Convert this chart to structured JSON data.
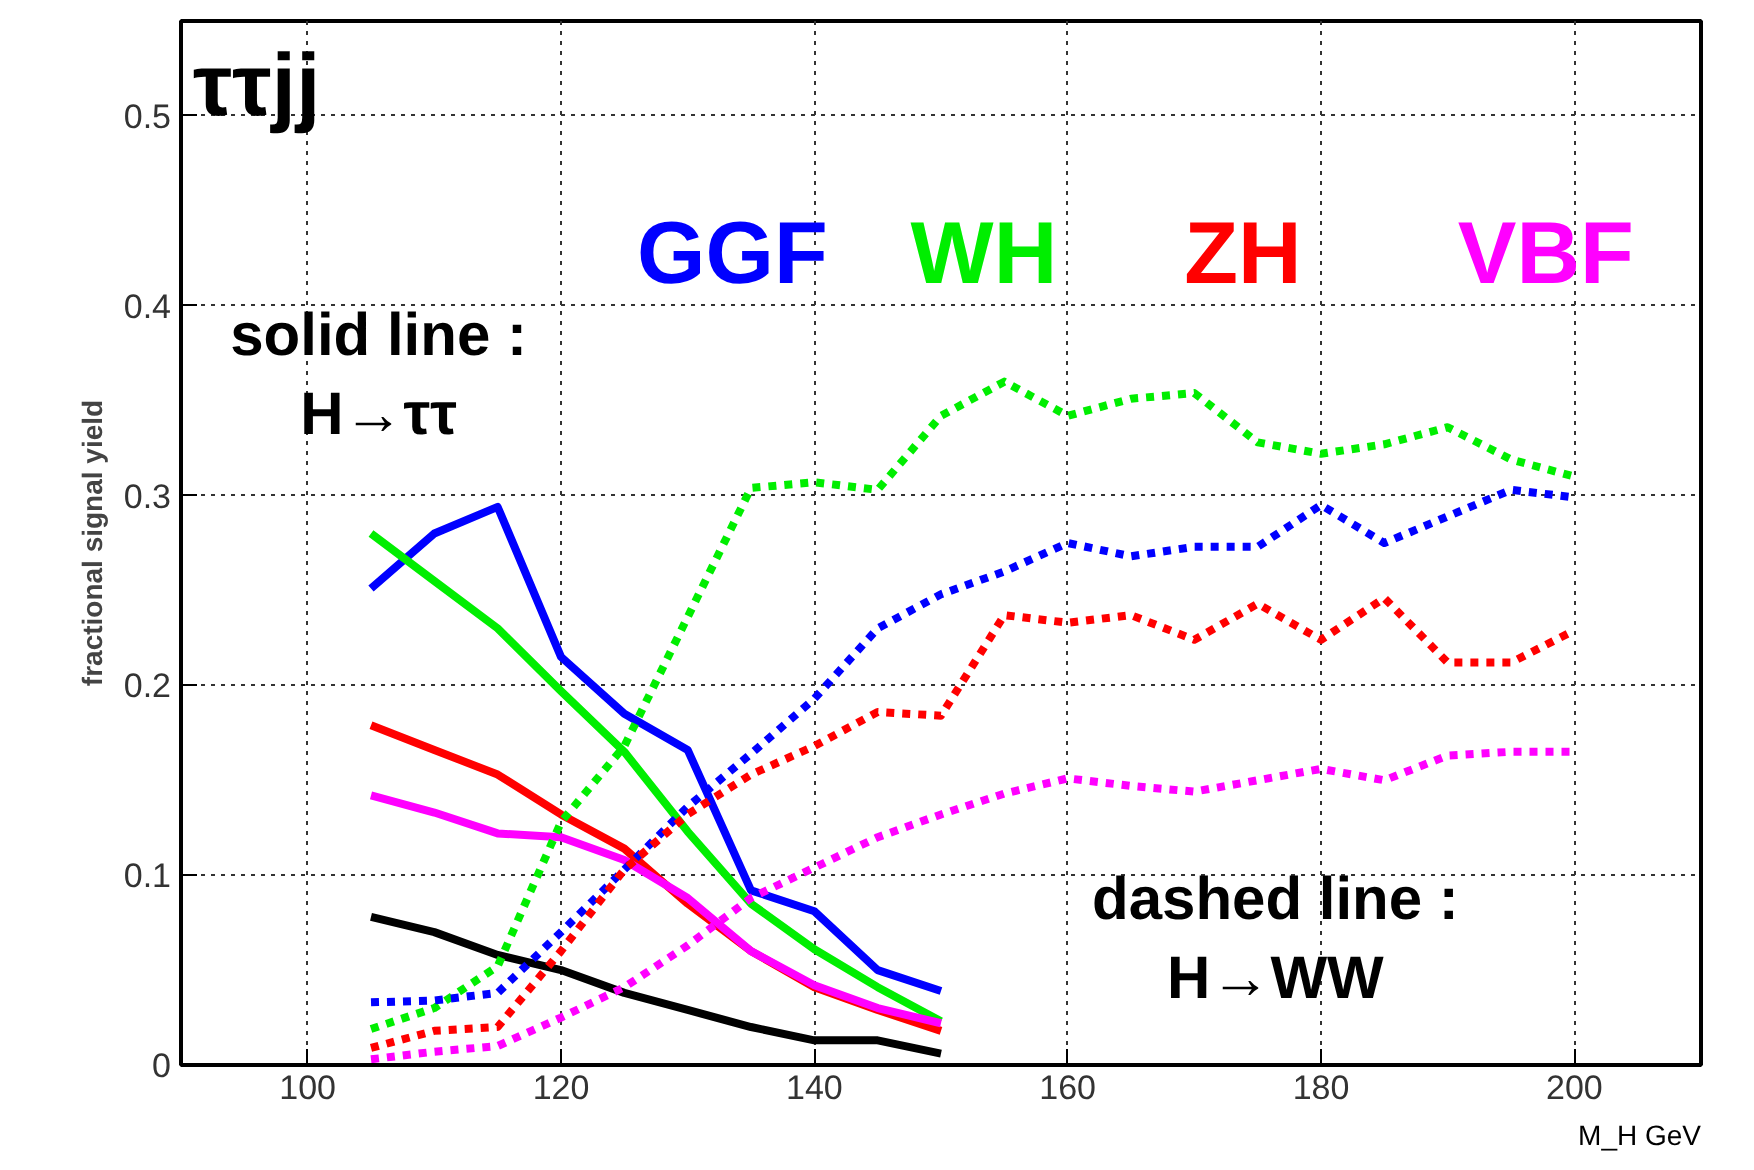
{
  "chart_data": {
    "type": "line",
    "title": "ττjj",
    "xlabel": "M_H GeV",
    "ylabel": "fractional signal yield",
    "annotations": [
      "solid line :\nH→ττ",
      "dashed line :\nH→WW"
    ],
    "xlim": [
      90,
      210
    ],
    "ylim": [
      0,
      0.55
    ],
    "xticks": [
      100,
      120,
      140,
      160,
      180,
      200
    ],
    "yticks": [
      0,
      {
        "value": 0.1,
        "label": "0.1"
      },
      {
        "value": 0.2,
        "label": "0.2"
      },
      {
        "value": 0.3,
        "label": "0.3"
      },
      {
        "value": 0.4,
        "label": "0.4"
      },
      {
        "value": 0.5,
        "label": "0.5"
      }
    ],
    "grid": true,
    "legend": "top right",
    "marker": "none",
    "series": [
      {
        "name": "GGF",
        "color": "#0000ff",
        "line_style": "solid",
        "x": [
          105,
          110,
          115,
          120,
          125,
          130,
          135,
          140,
          145,
          150
        ],
        "values": [
          0.251,
          0.28,
          0.294,
          0.215,
          0.185,
          0.166,
          0.092,
          0.081,
          0.05,
          0.039
        ]
      },
      {
        "name": "WH",
        "color": "#00ee00",
        "line_style": "solid",
        "x": [
          105,
          110,
          115,
          120,
          125,
          130,
          135,
          140,
          145,
          150
        ],
        "values": [
          0.28,
          0.255,
          0.23,
          0.197,
          0.165,
          0.123,
          0.085,
          0.061,
          0.041,
          0.023
        ]
      },
      {
        "name": "ZH",
        "color": "#ff0000",
        "line_style": "solid",
        "x": [
          105,
          110,
          115,
          120,
          125,
          130,
          135,
          140,
          145,
          150
        ],
        "values": [
          0.179,
          0.166,
          0.153,
          0.132,
          0.114,
          0.085,
          0.06,
          0.041,
          0.029,
          0.018
        ]
      },
      {
        "name": "VBF",
        "color": "#ff00ff",
        "line_style": "solid",
        "x": [
          105,
          110,
          115,
          120,
          125,
          130,
          135,
          140,
          145,
          150
        ],
        "values": [
          0.142,
          0.133,
          0.122,
          0.12,
          0.108,
          0.088,
          0.06,
          0.042,
          0.03,
          0.022
        ]
      },
      {
        "color": "#000000",
        "line_style": "solid",
        "x": [
          105,
          110,
          115,
          120,
          125,
          130,
          135,
          140,
          145,
          150
        ],
        "values": [
          0.078,
          0.07,
          0.058,
          0.05,
          0.038,
          0.029,
          0.02,
          0.013,
          0.013,
          0.006
        ]
      },
      {
        "color": "#00ee00",
        "line_style": "dashed",
        "x": [
          105,
          110,
          115,
          120,
          125,
          130,
          135,
          140,
          145,
          150,
          155,
          160,
          165,
          170,
          175,
          180,
          185,
          190,
          195,
          200
        ],
        "values": [
          0.019,
          0.03,
          0.052,
          0.128,
          0.168,
          0.236,
          0.304,
          0.307,
          0.303,
          0.342,
          0.36,
          0.342,
          0.351,
          0.354,
          0.328,
          0.322,
          0.327,
          0.336,
          0.319,
          0.31
        ]
      },
      {
        "color": "#0000ff",
        "line_style": "dashed",
        "x": [
          105,
          110,
          115,
          120,
          125,
          130,
          135,
          140,
          145,
          150,
          155,
          160,
          165,
          170,
          175,
          180,
          185,
          190,
          195,
          200
        ],
        "values": [
          0.033,
          0.034,
          0.038,
          0.07,
          0.103,
          0.136,
          0.164,
          0.193,
          0.23,
          0.248,
          0.26,
          0.275,
          0.268,
          0.273,
          0.273,
          0.295,
          0.275,
          0.289,
          0.303,
          0.299
        ]
      },
      {
        "color": "#ff0000",
        "line_style": "dashed",
        "x": [
          105,
          110,
          115,
          120,
          125,
          130,
          135,
          140,
          145,
          150,
          155,
          160,
          165,
          170,
          175,
          180,
          185,
          190,
          195,
          200
        ],
        "values": [
          0.009,
          0.018,
          0.02,
          0.06,
          0.103,
          0.132,
          0.153,
          0.168,
          0.186,
          0.184,
          0.237,
          0.233,
          0.237,
          0.224,
          0.243,
          0.224,
          0.246,
          0.212,
          0.212,
          0.229
        ]
      },
      {
        "color": "#ff00ff",
        "line_style": "dashed",
        "x": [
          105,
          110,
          115,
          120,
          125,
          130,
          135,
          140,
          145,
          150,
          155,
          160,
          165,
          170,
          175,
          180,
          185,
          190,
          195,
          200
        ],
        "values": [
          0.003,
          0.007,
          0.01,
          0.025,
          0.041,
          0.063,
          0.088,
          0.104,
          0.12,
          0.132,
          0.143,
          0.151,
          0.147,
          0.144,
          0.15,
          0.156,
          0.15,
          0.163,
          0.165,
          0.165
        ]
      }
    ]
  }
}
